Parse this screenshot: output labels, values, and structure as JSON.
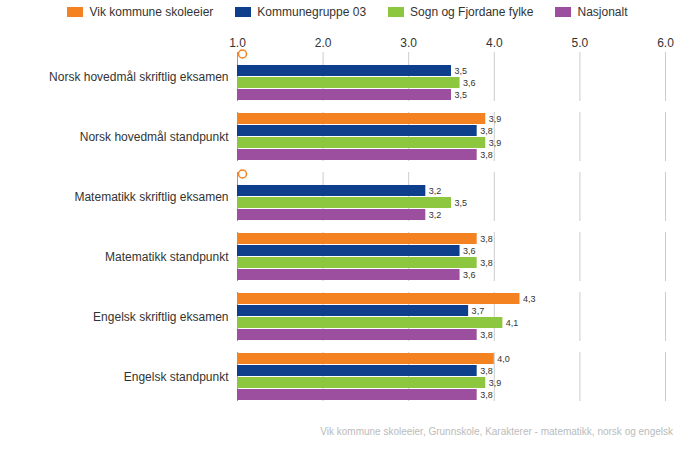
{
  "chart_data": {
    "type": "bar",
    "orientation": "horizontal",
    "categories": [
      "Norsk hovedmål skriftlig eksamen",
      "Norsk hovedmål standpunkt",
      "Matematikk skriftlig eksamen",
      "Matematikk standpunkt",
      "Engelsk skriftlig eksamen",
      "Engelsk standpunkt"
    ],
    "series": [
      {
        "name": "Vik kommune skoleeier",
        "color": "#f58220",
        "values": [
          null,
          3.9,
          null,
          3.8,
          4.3,
          4.0
        ],
        "value_labels": [
          null,
          "3,9",
          null,
          "3,8",
          "4,3",
          "4,0"
        ]
      },
      {
        "name": "Kommunegruppe 03",
        "color": "#0d3f8c",
        "values": [
          3.5,
          3.8,
          3.2,
          3.6,
          3.7,
          3.8
        ],
        "value_labels": [
          "3,5",
          "3,8",
          "3,2",
          "3,6",
          "3,7",
          "3,8"
        ]
      },
      {
        "name": "Sogn og Fjordane fylke",
        "color": "#8dc63f",
        "values": [
          3.6,
          3.9,
          3.5,
          3.8,
          4.1,
          3.9
        ],
        "value_labels": [
          "3,6",
          "3,9",
          "3,5",
          "3,8",
          "4,1",
          "3,9"
        ]
      },
      {
        "name": "Nasjonalt",
        "color": "#9b4f9e",
        "values": [
          3.5,
          3.8,
          3.2,
          3.6,
          3.8,
          3.8
        ],
        "value_labels": [
          "3,5",
          "3,8",
          "3,2",
          "3,6",
          "3,8",
          "3,8"
        ]
      }
    ],
    "xlim": [
      1,
      6
    ],
    "xticks": [
      1,
      2,
      3,
      4,
      5,
      6
    ],
    "grid": true,
    "data_labels": true,
    "legend": "top",
    "caption": "Vik kommune skoleeier, Grunnskole, Karakterer - matematikk, norsk og engelsk"
  }
}
